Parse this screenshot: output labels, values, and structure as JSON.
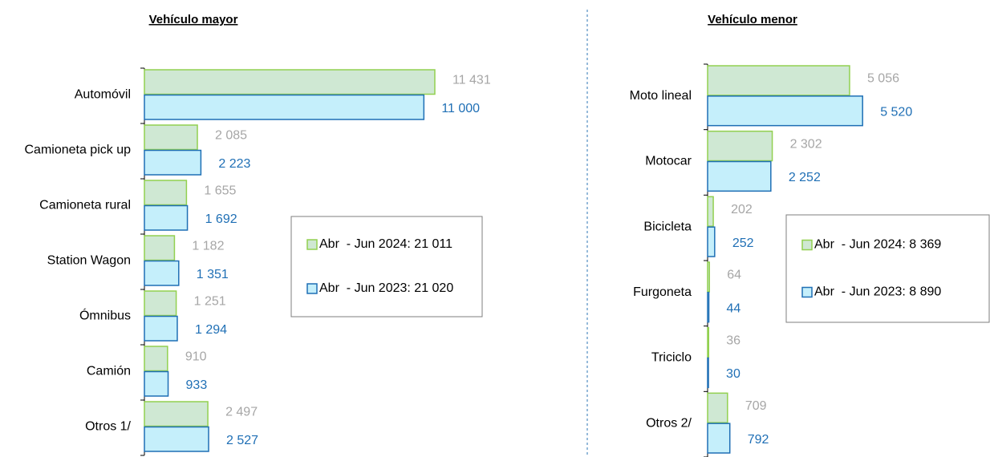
{
  "chart_data": [
    {
      "type": "bar",
      "orientation": "horizontal",
      "title": "Vehículo mayor",
      "categories": [
        "Automóvil",
        "Camioneta pick up",
        "Camioneta rural",
        "Station Wagon",
        "Ómnibus",
        "Camión",
        "Otros 1/"
      ],
      "xlim": [
        0,
        12000
      ],
      "series": [
        {
          "name": "Abr  - Jun 2024: 21 011",
          "color": "#cfe8d3",
          "edge": "#92d050",
          "label_color": "#a6a6a6",
          "values": [
            11431,
            2085,
            1655,
            1182,
            1251,
            910,
            2497
          ],
          "value_labels": [
            "11 431",
            "2 085",
            "1 655",
            "1 182",
            "1 251",
            "910",
            "2 497"
          ]
        },
        {
          "name": "Abr  - Jun 2023: 21 020",
          "color": "#c5effb",
          "edge": "#1f6fb5",
          "label_color": "#1f6fb5",
          "values": [
            11000,
            2223,
            1692,
            1351,
            1294,
            933,
            2527
          ],
          "value_labels": [
            "11 000",
            "2 223",
            "1 692",
            "1 351",
            "1 294",
            "933",
            "2 527"
          ]
        }
      ]
    },
    {
      "type": "bar",
      "orientation": "horizontal",
      "title": "Vehículo menor",
      "categories": [
        "Moto lineal",
        "Motocar",
        "Bicicleta",
        "Furgoneta",
        "Triciclo",
        "Otros 2/"
      ],
      "xlim": [
        0,
        6000
      ],
      "series": [
        {
          "name": "Abr  - Jun 2024: 8 369",
          "color": "#cfe8d3",
          "edge": "#92d050",
          "label_color": "#a6a6a6",
          "values": [
            5056,
            2302,
            202,
            64,
            36,
            709
          ],
          "value_labels": [
            "5 056",
            "2 302",
            "202",
            "64",
            "36",
            "709"
          ]
        },
        {
          "name": "Abr  - Jun 2023: 8 890",
          "color": "#c5effb",
          "edge": "#1f6fb5",
          "label_color": "#1f6fb5",
          "values": [
            5520,
            2252,
            252,
            44,
            30,
            792
          ],
          "value_labels": [
            "5 520",
            "2 252",
            "252",
            "44",
            "30",
            "792"
          ]
        }
      ]
    }
  ]
}
